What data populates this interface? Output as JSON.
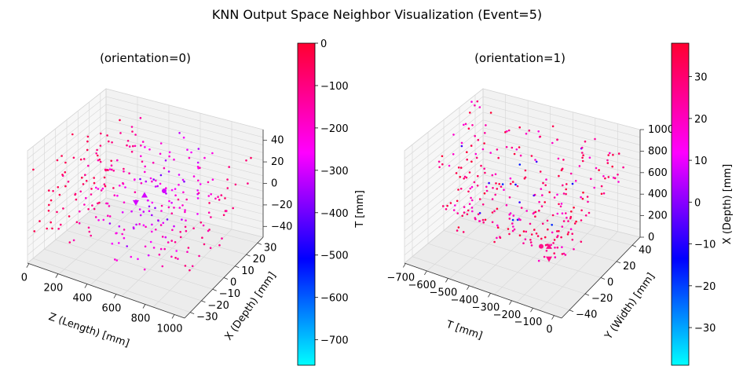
{
  "figure": {
    "suptitle": "KNN Output Space Neighbor Visualization (Event=5)"
  },
  "colors": {
    "cmap_low": "#00ffff",
    "cmap_mid_low": "#0000ff",
    "cmap_mid": "#ff00ff",
    "cmap_high": "#ff0030"
  },
  "chart_data": [
    {
      "type": "scatter",
      "projection": "3d",
      "title": "(orientation=0)",
      "x_axis": {
        "label": "Z (Length) [mm]",
        "ticks": [
          "0",
          "200",
          "400",
          "600",
          "800",
          "1000"
        ],
        "range": [
          0,
          1000
        ]
      },
      "y_axis": {
        "label": "X (Depth) [mm]",
        "ticks": [
          "−30",
          "−20",
          "−10",
          "0",
          "10",
          "20",
          "30"
        ],
        "range": [
          -35,
          35
        ]
      },
      "z_axis": {
        "label": "",
        "ticks": [
          "−40",
          "−20",
          "0",
          "20",
          "40"
        ],
        "range": [
          -50,
          50
        ]
      },
      "colorbar": {
        "label": "T [mm]",
        "ticks": [
          "0",
          "−100",
          "−200",
          "−300",
          "−400",
          "−500",
          "−600",
          "−700"
        ],
        "range": [
          -760,
          0
        ]
      },
      "grid": true,
      "highlighted_markers": [
        "triangle-up",
        "triangle-down",
        "circle"
      ],
      "approx_point_count": 300,
      "color_trend": "blue/purple (T ≈ −300 to −450) at high Z, pink/red (T ≈ −100 to 0) at low Z and outer regions"
    },
    {
      "type": "scatter",
      "projection": "3d",
      "title": "(orientation=1)",
      "x_axis": {
        "label": "T [mm]",
        "ticks": [
          "−700",
          "−600",
          "−500",
          "−400",
          "−300",
          "−200",
          "−100",
          "0"
        ],
        "range": [
          -760,
          0
        ]
      },
      "y_axis": {
        "label": "Y (Width) [mm]",
        "ticks": [
          "−40",
          "−20",
          "0",
          "20",
          "40"
        ],
        "range": [
          -50,
          50
        ]
      },
      "z_axis": {
        "label": "",
        "ticks": [
          "0",
          "200",
          "400",
          "600",
          "800",
          "1000"
        ],
        "range": [
          0,
          1000
        ]
      },
      "colorbar": {
        "label": "X (Depth) [mm]",
        "ticks": [
          "30",
          "20",
          "10",
          "0",
          "−10",
          "−20",
          "−30"
        ],
        "range": [
          -39,
          38
        ]
      },
      "grid": true,
      "highlighted_markers": [
        "triangle-up",
        "triangle-down",
        "circle"
      ],
      "approx_point_count": 300,
      "color_trend": "mostly pink/red (X Depth ≈ +10 to +35), few blue points"
    }
  ]
}
